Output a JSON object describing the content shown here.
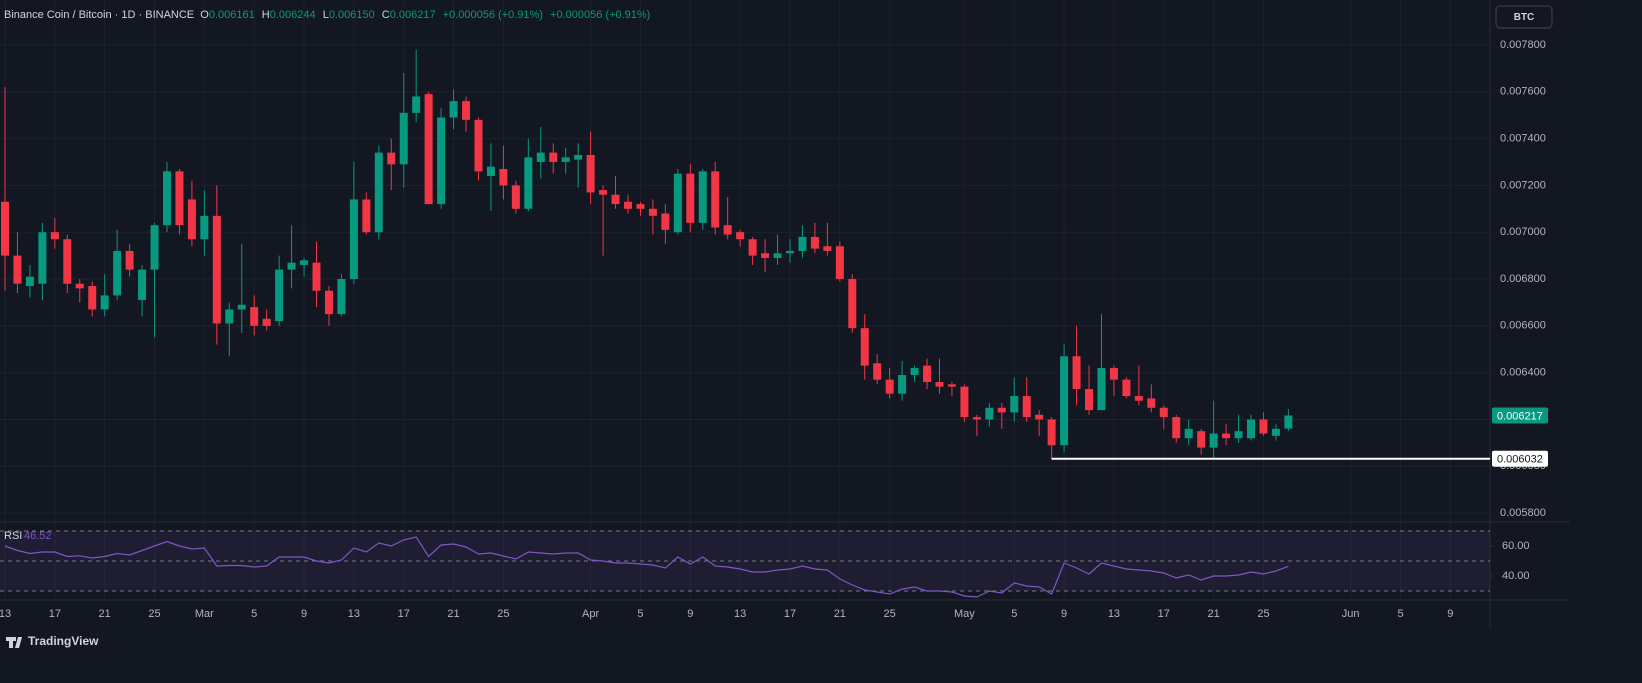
{
  "chart_data": [
    {
      "type": "candlestick",
      "title": "Binance Coin / Bitcoin · 1D · BINANCE",
      "ohlc_letters": [
        "O",
        "H",
        "L",
        "C"
      ],
      "header_values": [
        "0.006161",
        "0.006244",
        "0.006150",
        "0.006217"
      ],
      "change": "+0.000056 (+0.91%)",
      "currency": "BTC",
      "brand": "TradingView",
      "up_color": "#089981",
      "down_color": "#f23645",
      "categories": [
        "13",
        null,
        null,
        null,
        "17",
        null,
        null,
        null,
        "21",
        null,
        null,
        null,
        "25",
        null,
        null,
        null,
        "Mar",
        null,
        null,
        null,
        "5",
        null,
        null,
        null,
        "9",
        null,
        null,
        null,
        "13",
        null,
        null,
        null,
        "17",
        null,
        null,
        null,
        "21",
        null,
        null,
        null,
        "25",
        null,
        null,
        null,
        null,
        null,
        null,
        "Apr",
        null,
        null,
        null,
        "5",
        null,
        null,
        null,
        "9",
        null,
        null,
        null,
        "13",
        null,
        null,
        null,
        "17",
        null,
        null,
        null,
        "21",
        null,
        null,
        null,
        "25",
        null,
        null,
        null,
        null,
        null,
        "May",
        null,
        null,
        null,
        "5",
        null,
        null,
        null,
        "9",
        null,
        null,
        null,
        "13",
        null,
        null,
        null,
        "17",
        null,
        null,
        null,
        "21",
        null,
        null,
        null,
        "25",
        null,
        null,
        null,
        null,
        null,
        null,
        "Jun",
        null,
        null,
        null,
        "5",
        null,
        null,
        null,
        "9"
      ],
      "open": [
        0.00713,
        0.0069,
        0.00677,
        0.00678,
        0.007,
        0.00697,
        0.00678,
        0.00677,
        0.00667,
        0.00673,
        0.00692,
        0.00671,
        0.00684,
        0.00703,
        0.00726,
        0.00714,
        0.00697,
        0.00707,
        0.00661,
        0.00667,
        0.00668,
        0.00663,
        0.00662,
        0.00684,
        0.00686,
        0.00687,
        0.00675,
        0.00665,
        0.0068,
        0.00714,
        0.007,
        0.00734,
        0.00729,
        0.00751,
        0.00759,
        0.00712,
        0.00749,
        0.00756,
        0.00748,
        0.00724,
        0.00727,
        0.0072,
        0.0071,
        0.0073,
        0.00734,
        0.0073,
        0.00731,
        0.00733,
        0.00718,
        0.00716,
        0.00713,
        0.00712,
        0.0071,
        0.00708,
        0.007,
        0.00725,
        0.00704,
        0.00726,
        0.00703,
        0.007,
        0.00697,
        0.00691,
        0.00689,
        0.00691,
        0.00692,
        0.00698,
        0.00694,
        0.00694,
        0.0068,
        0.00659,
        0.00644,
        0.00637,
        0.00631,
        0.00639,
        0.00643,
        0.00636,
        0.00635,
        0.00634,
        0.00621,
        0.0062,
        0.00625,
        0.00623,
        0.0063,
        0.00622,
        0.0062,
        0.00609,
        0.00647,
        0.00633,
        0.00624,
        0.00642,
        0.00637,
        0.0063,
        0.00629,
        0.00625,
        0.00621,
        0.00612,
        0.00615,
        0.00608,
        0.00614,
        0.00612,
        0.00612,
        0.0062,
        0.00613,
        0.006161,
        null,
        null,
        null,
        null,
        null,
        null,
        null,
        null,
        null,
        null,
        null,
        null,
        null
      ],
      "high": [
        0.00762,
        0.007,
        0.00686,
        0.00704,
        0.00706,
        0.00699,
        0.0068,
        0.00679,
        0.00682,
        0.00701,
        0.00695,
        0.00686,
        0.00704,
        0.0073,
        0.00727,
        0.00722,
        0.00718,
        0.0072,
        0.0067,
        0.00695,
        0.00673,
        0.00667,
        0.0069,
        0.00703,
        0.00689,
        0.00696,
        0.00677,
        0.00682,
        0.0073,
        0.00717,
        0.00737,
        0.0074,
        0.00768,
        0.00778,
        0.0076,
        0.00753,
        0.00761,
        0.00758,
        0.00749,
        0.00738,
        0.00737,
        0.00722,
        0.0074,
        0.00745,
        0.00738,
        0.00736,
        0.00738,
        0.00743,
        0.0072,
        0.00724,
        0.00716,
        0.00713,
        0.00714,
        0.00712,
        0.00727,
        0.00729,
        0.00727,
        0.0073,
        0.00715,
        0.00701,
        0.00698,
        0.00697,
        0.00699,
        0.00697,
        0.00703,
        0.00704,
        0.00704,
        0.00696,
        0.00682,
        0.00665,
        0.00648,
        0.00642,
        0.00645,
        0.00643,
        0.00646,
        0.00646,
        0.00636,
        0.00635,
        0.00622,
        0.00627,
        0.00627,
        0.00638,
        0.00638,
        0.00624,
        0.00621,
        0.00652,
        0.0066,
        0.00643,
        0.00665,
        0.00643,
        0.00638,
        0.00643,
        0.00635,
        0.00626,
        0.00622,
        0.0062,
        0.00616,
        0.00628,
        0.00618,
        0.00622,
        0.00622,
        0.00623,
        0.00618,
        0.006244,
        null,
        null,
        null,
        null,
        null,
        null,
        null,
        null,
        null,
        null,
        null,
        null,
        null
      ],
      "low": [
        0.00675,
        0.00674,
        0.00672,
        0.00671,
        0.00693,
        0.00674,
        0.0067,
        0.00664,
        0.00664,
        0.00671,
        0.00681,
        0.00664,
        0.00655,
        0.007,
        0.00699,
        0.00694,
        0.0069,
        0.00652,
        0.00647,
        0.00657,
        0.00656,
        0.00658,
        0.0066,
        0.00676,
        0.00681,
        0.00668,
        0.0066,
        0.00664,
        0.00678,
        0.00699,
        0.00697,
        0.00718,
        0.00719,
        0.00747,
        0.00712,
        0.0071,
        0.00744,
        0.00743,
        0.00722,
        0.00709,
        0.00714,
        0.00708,
        0.00709,
        0.00723,
        0.00725,
        0.00725,
        0.00719,
        0.00712,
        0.0069,
        0.0071,
        0.00708,
        0.00707,
        0.00699,
        0.00695,
        0.00699,
        0.007,
        0.00701,
        0.00699,
        0.00697,
        0.00694,
        0.00686,
        0.00683,
        0.00686,
        0.00687,
        0.00689,
        0.00691,
        0.0069,
        0.00679,
        0.00657,
        0.00637,
        0.00635,
        0.00629,
        0.00628,
        0.00636,
        0.00633,
        0.00631,
        0.0063,
        0.00619,
        0.00613,
        0.00617,
        0.00616,
        0.00619,
        0.00619,
        0.00613,
        0.006032,
        0.00606,
        0.00626,
        0.00622,
        0.00624,
        0.0063,
        0.00629,
        0.00626,
        0.00623,
        0.00616,
        0.0061,
        0.00609,
        0.00605,
        0.00603,
        0.00609,
        0.0061,
        0.00611,
        0.00613,
        0.00611,
        0.00615,
        null,
        null,
        null,
        null,
        null,
        null,
        null,
        null,
        null,
        null,
        null,
        null,
        null
      ],
      "close": [
        0.0069,
        0.00678,
        0.00681,
        0.007,
        0.00697,
        0.00678,
        0.00676,
        0.00667,
        0.00673,
        0.00692,
        0.00684,
        0.00684,
        0.00703,
        0.00726,
        0.00703,
        0.00697,
        0.00707,
        0.00661,
        0.00667,
        0.00669,
        0.0066,
        0.0066,
        0.00684,
        0.00687,
        0.00688,
        0.00675,
        0.00665,
        0.0068,
        0.00714,
        0.007,
        0.00734,
        0.00729,
        0.00751,
        0.00758,
        0.00712,
        0.00749,
        0.00756,
        0.00748,
        0.00726,
        0.00728,
        0.0072,
        0.0071,
        0.00732,
        0.00734,
        0.0073,
        0.00732,
        0.00733,
        0.00717,
        0.00716,
        0.00712,
        0.0071,
        0.0071,
        0.00707,
        0.00701,
        0.00725,
        0.00704,
        0.00726,
        0.00702,
        0.00699,
        0.00697,
        0.0069,
        0.00689,
        0.00691,
        0.00692,
        0.00698,
        0.00693,
        0.00692,
        0.0068,
        0.00659,
        0.00643,
        0.00637,
        0.00631,
        0.00639,
        0.00642,
        0.00636,
        0.00634,
        0.00634,
        0.00621,
        0.0062,
        0.00625,
        0.00623,
        0.0063,
        0.00621,
        0.0062,
        0.00609,
        0.00647,
        0.00633,
        0.00624,
        0.00642,
        0.00637,
        0.0063,
        0.00628,
        0.00625,
        0.00621,
        0.00612,
        0.00616,
        0.00608,
        0.00614,
        0.00612,
        0.00615,
        0.0062,
        0.00614,
        0.00616,
        0.006217,
        null,
        null,
        null,
        null,
        null,
        null,
        null,
        null,
        null,
        null,
        null,
        null,
        null
      ],
      "ylim": [
        0.005762,
        0.007992
      ],
      "yticks": [
        {
          "value": 0.0078,
          "label": "0.007800"
        },
        {
          "value": 0.0076,
          "label": "0.007600"
        },
        {
          "value": 0.0074,
          "label": "0.007400"
        },
        {
          "value": 0.0072,
          "label": "0.007200"
        },
        {
          "value": 0.007,
          "label": "0.007000"
        },
        {
          "value": 0.0068,
          "label": "0.006800"
        },
        {
          "value": 0.0066,
          "label": "0.006600"
        },
        {
          "value": 0.0064,
          "label": "0.006400"
        },
        {
          "value": 0.0062,
          "label": "0.006200"
        },
        {
          "value": 0.006,
          "label": "0.006000"
        },
        {
          "value": 0.0058,
          "label": "0.005800"
        }
      ],
      "hline": {
        "value": 0.006032,
        "label": "0.006032",
        "color": "#ffffff"
      },
      "grid": true
    },
    {
      "type": "line",
      "title": "RSI",
      "color": "#7e57c2",
      "values": [
        60,
        57,
        55,
        56,
        56,
        53,
        53.5,
        52,
        53,
        55,
        54,
        57,
        60,
        63,
        60,
        58,
        58.7,
        46.7,
        47,
        47,
        46,
        46.7,
        52.7,
        52.7,
        52.7,
        50,
        48.7,
        50.7,
        58.7,
        56,
        62,
        60,
        64,
        66,
        53,
        60.7,
        61.3,
        59.3,
        54.7,
        55.3,
        53.3,
        51.3,
        56,
        55.3,
        54.7,
        55.3,
        55.3,
        50.7,
        50,
        48.7,
        48.7,
        48,
        47.3,
        45.3,
        52.7,
        48,
        52.7,
        46.7,
        46,
        44.7,
        42.7,
        42.7,
        44,
        44.7,
        46.7,
        44.7,
        44,
        38,
        34,
        30.7,
        29.3,
        28,
        31.3,
        32.7,
        30,
        30,
        29.3,
        26.7,
        26,
        30,
        28.7,
        35.3,
        33.3,
        32.7,
        28,
        48.7,
        45.3,
        41.3,
        48.7,
        46.7,
        44.7,
        44,
        43.3,
        42,
        38.7,
        40.7,
        37.3,
        40,
        40,
        40.7,
        42.7,
        41.3,
        43.3,
        46.52,
        null,
        null,
        null,
        null,
        null,
        null,
        null,
        null,
        null,
        null,
        null,
        null,
        null
      ],
      "ylim": [
        24,
        76
      ],
      "yticks": [
        {
          "value": 60,
          "label": "60.00"
        },
        {
          "value": 40,
          "label": "40.00"
        }
      ],
      "bands": [
        70,
        50,
        30
      ]
    }
  ]
}
